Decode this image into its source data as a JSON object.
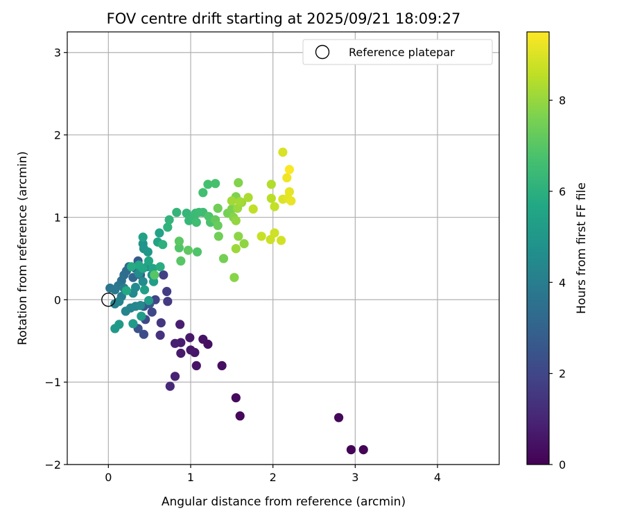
{
  "chart_data": {
    "type": "scatter",
    "title": "FOV centre drift starting at 2025/09/21 18:09:27",
    "xlabel": "Angular distance from reference (arcmin)",
    "ylabel": "Rotation from reference (arcmin)",
    "xlim": [
      -0.5,
      4.75
    ],
    "ylim": [
      -2,
      3.25
    ],
    "xticks": [
      0,
      1,
      2,
      3,
      4
    ],
    "yticks": [
      -2,
      -1,
      0,
      1,
      2,
      3
    ],
    "grid": true,
    "legend": {
      "placement": "top-right",
      "entries": [
        "Reference platepar"
      ]
    },
    "reference_point": {
      "x": 0,
      "y": 0,
      "label": "Reference platepar"
    },
    "colorbar": {
      "label": "Hours from first FF file",
      "colormap": "viridis",
      "range": [
        0,
        9.5
      ],
      "ticks": [
        0,
        2,
        4,
        6,
        8
      ]
    },
    "points": [
      {
        "x": 2.95,
        "y": -1.82,
        "h": 0.05
      },
      {
        "x": 3.1,
        "y": -1.82,
        "h": 0.1
      },
      {
        "x": 2.8,
        "y": -1.43,
        "h": 0.15
      },
      {
        "x": 1.6,
        "y": -1.41,
        "h": 0.2
      },
      {
        "x": 1.55,
        "y": -1.19,
        "h": 0.25
      },
      {
        "x": 1.38,
        "y": -0.8,
        "h": 0.35
      },
      {
        "x": 1.21,
        "y": -0.54,
        "h": 0.4
      },
      {
        "x": 1.15,
        "y": -0.48,
        "h": 0.45
      },
      {
        "x": 1.07,
        "y": -0.8,
        "h": 0.5
      },
      {
        "x": 1.05,
        "y": -0.64,
        "h": 0.55
      },
      {
        "x": 1.0,
        "y": -0.61,
        "h": 0.6
      },
      {
        "x": 0.99,
        "y": -0.46,
        "h": 0.65
      },
      {
        "x": 0.88,
        "y": -0.65,
        "h": 0.7
      },
      {
        "x": 0.88,
        "y": -0.52,
        "h": 0.75
      },
      {
        "x": 0.87,
        "y": -0.3,
        "h": 0.8
      },
      {
        "x": 0.81,
        "y": -0.53,
        "h": 0.85
      },
      {
        "x": 0.81,
        "y": -0.93,
        "h": 0.9
      },
      {
        "x": 0.75,
        "y": -1.05,
        "h": 1.1
      },
      {
        "x": 0.63,
        "y": -0.43,
        "h": 1.4
      },
      {
        "x": 0.64,
        "y": -0.28,
        "h": 1.5
      },
      {
        "x": 0.72,
        "y": -0.02,
        "h": 1.6
      },
      {
        "x": 0.71,
        "y": 0.1,
        "h": 1.7
      },
      {
        "x": 0.67,
        "y": 0.3,
        "h": 1.8
      },
      {
        "x": 0.57,
        "y": 0.0,
        "h": 1.9
      },
      {
        "x": 0.53,
        "y": -0.15,
        "h": 2.0
      },
      {
        "x": 0.45,
        "y": -0.24,
        "h": 2.1
      },
      {
        "x": 0.43,
        "y": -0.42,
        "h": 2.2
      },
      {
        "x": 0.36,
        "y": -0.35,
        "h": 2.4
      },
      {
        "x": 0.43,
        "y": -0.08,
        "h": 2.5
      },
      {
        "x": 0.5,
        "y": -0.05,
        "h": 2.6
      },
      {
        "x": 0.36,
        "y": 0.47,
        "h": 2.7
      },
      {
        "x": 0.39,
        "y": 0.3,
        "h": 2.8
      },
      {
        "x": 0.33,
        "y": 0.38,
        "h": 3.0
      },
      {
        "x": 0.3,
        "y": 0.27,
        "h": 3.1
      },
      {
        "x": 0.25,
        "y": 0.4,
        "h": 3.2
      },
      {
        "x": 0.22,
        "y": 0.35,
        "h": 3.3
      },
      {
        "x": 0.19,
        "y": 0.3,
        "h": 3.4
      },
      {
        "x": 0.16,
        "y": 0.23,
        "h": 3.5
      },
      {
        "x": 0.12,
        "y": 0.17,
        "h": 3.6
      },
      {
        "x": 0.02,
        "y": 0.14,
        "h": 3.7
      },
      {
        "x": 0.08,
        "y": 0.12,
        "h": 3.8
      },
      {
        "x": 0.19,
        "y": 0.14,
        "h": 3.9
      },
      {
        "x": 0.16,
        "y": 0.04,
        "h": 4.0
      },
      {
        "x": 0.08,
        "y": -0.05,
        "h": 4.1
      },
      {
        "x": 0.13,
        "y": -0.02,
        "h": 4.2
      },
      {
        "x": 0.21,
        "y": -0.14,
        "h": 4.25
      },
      {
        "x": 0.27,
        "y": -0.1,
        "h": 4.3
      },
      {
        "x": 0.33,
        "y": -0.08,
        "h": 4.35
      },
      {
        "x": 0.39,
        "y": -0.07,
        "h": 4.4
      },
      {
        "x": 0.3,
        "y": 0.08,
        "h": 4.45
      },
      {
        "x": 0.33,
        "y": 0.15,
        "h": 4.5
      },
      {
        "x": 0.42,
        "y": 0.22,
        "h": 4.55
      },
      {
        "x": 0.37,
        "y": 0.32,
        "h": 4.6
      },
      {
        "x": 0.47,
        "y": 0.4,
        "h": 4.65
      },
      {
        "x": 0.53,
        "y": 0.3,
        "h": 4.7
      },
      {
        "x": 0.42,
        "y": 0.68,
        "h": 4.8
      },
      {
        "x": 0.43,
        "y": 0.62,
        "h": 4.9
      },
      {
        "x": 0.48,
        "y": 0.58,
        "h": 5.0
      },
      {
        "x": 0.08,
        "y": -0.35,
        "h": 5.05
      },
      {
        "x": 0.13,
        "y": -0.3,
        "h": 5.1
      },
      {
        "x": 0.3,
        "y": -0.29,
        "h": 5.15
      },
      {
        "x": 0.4,
        "y": -0.2,
        "h": 5.2
      },
      {
        "x": 0.49,
        "y": -0.01,
        "h": 5.25
      },
      {
        "x": 0.55,
        "y": 0.22,
        "h": 5.3
      },
      {
        "x": 0.44,
        "y": 0.12,
        "h": 5.35
      },
      {
        "x": 0.42,
        "y": 0.76,
        "h": 5.4
      },
      {
        "x": 0.62,
        "y": 0.81,
        "h": 5.45
      },
      {
        "x": 0.6,
        "y": 0.7,
        "h": 5.5
      },
      {
        "x": 0.54,
        "y": 0.38,
        "h": 5.55
      },
      {
        "x": 0.42,
        "y": 0.38,
        "h": 5.6
      },
      {
        "x": 0.49,
        "y": 0.47,
        "h": 5.65
      },
      {
        "x": 0.37,
        "y": 0.42,
        "h": 5.7
      },
      {
        "x": 0.22,
        "y": 0.11,
        "h": 5.75
      },
      {
        "x": 0.28,
        "y": 0.4,
        "h": 5.8
      },
      {
        "x": 0.63,
        "y": 0.4,
        "h": 5.9
      },
      {
        "x": 0.66,
        "y": 0.67,
        "h": 6.0
      },
      {
        "x": 0.72,
        "y": 0.88,
        "h": 6.1
      },
      {
        "x": 0.74,
        "y": 0.97,
        "h": 6.15
      },
      {
        "x": 0.83,
        "y": 1.06,
        "h": 6.2
      },
      {
        "x": 0.95,
        "y": 1.05,
        "h": 6.25
      },
      {
        "x": 0.98,
        "y": 0.96,
        "h": 6.3
      },
      {
        "x": 1.04,
        "y": 0.99,
        "h": 6.35
      },
      {
        "x": 1.06,
        "y": 1.05,
        "h": 6.4
      },
      {
        "x": 1.1,
        "y": 1.06,
        "h": 6.45
      },
      {
        "x": 1.15,
        "y": 1.06,
        "h": 6.5
      },
      {
        "x": 1.07,
        "y": 0.94,
        "h": 6.55
      },
      {
        "x": 1.15,
        "y": 1.3,
        "h": 6.6
      },
      {
        "x": 1.21,
        "y": 1.4,
        "h": 6.65
      },
      {
        "x": 1.3,
        "y": 1.41,
        "h": 6.7
      },
      {
        "x": 1.24,
        "y": 0.94,
        "h": 6.75
      },
      {
        "x": 1.22,
        "y": 1.01,
        "h": 6.8
      },
      {
        "x": 1.08,
        "y": 0.58,
        "h": 6.85
      },
      {
        "x": 0.86,
        "y": 0.63,
        "h": 6.9
      },
      {
        "x": 0.56,
        "y": 0.3,
        "h": 6.95
      },
      {
        "x": 0.88,
        "y": 0.47,
        "h": 7.0
      },
      {
        "x": 0.86,
        "y": 0.71,
        "h": 7.05
      },
      {
        "x": 0.97,
        "y": 0.6,
        "h": 7.1
      },
      {
        "x": 1.3,
        "y": 0.97,
        "h": 7.2
      },
      {
        "x": 1.33,
        "y": 0.9,
        "h": 7.3
      },
      {
        "x": 1.33,
        "y": 1.11,
        "h": 7.4
      },
      {
        "x": 1.34,
        "y": 0.77,
        "h": 7.45
      },
      {
        "x": 1.4,
        "y": 0.5,
        "h": 7.5
      },
      {
        "x": 1.45,
        "y": 1.05,
        "h": 7.55
      },
      {
        "x": 1.5,
        "y": 1.1,
        "h": 7.6
      },
      {
        "x": 1.55,
        "y": 1.25,
        "h": 7.65
      },
      {
        "x": 1.58,
        "y": 1.42,
        "h": 7.7
      },
      {
        "x": 1.52,
        "y": 1.0,
        "h": 7.75
      },
      {
        "x": 1.53,
        "y": 0.27,
        "h": 7.8
      },
      {
        "x": 1.58,
        "y": 0.77,
        "h": 7.85
      },
      {
        "x": 1.65,
        "y": 0.68,
        "h": 7.9
      },
      {
        "x": 1.55,
        "y": 0.96,
        "h": 7.95
      },
      {
        "x": 1.62,
        "y": 1.18,
        "h": 8.0
      },
      {
        "x": 1.57,
        "y": 1.11,
        "h": 8.05
      },
      {
        "x": 1.55,
        "y": 0.62,
        "h": 8.1
      },
      {
        "x": 1.5,
        "y": 1.2,
        "h": 8.15
      },
      {
        "x": 1.6,
        "y": 1.19,
        "h": 8.2
      },
      {
        "x": 1.7,
        "y": 1.24,
        "h": 8.3
      },
      {
        "x": 1.98,
        "y": 1.4,
        "h": 8.4
      },
      {
        "x": 1.98,
        "y": 1.23,
        "h": 8.5
      },
      {
        "x": 1.76,
        "y": 1.1,
        "h": 8.6
      },
      {
        "x": 2.02,
        "y": 1.13,
        "h": 8.65
      },
      {
        "x": 1.86,
        "y": 0.77,
        "h": 8.7
      },
      {
        "x": 1.97,
        "y": 0.73,
        "h": 8.75
      },
      {
        "x": 2.02,
        "y": 0.81,
        "h": 8.8
      },
      {
        "x": 2.1,
        "y": 0.72,
        "h": 8.85
      },
      {
        "x": 2.12,
        "y": 1.79,
        "h": 8.95
      },
      {
        "x": 2.12,
        "y": 1.22,
        "h": 9.0
      },
      {
        "x": 2.18,
        "y": 1.23,
        "h": 9.1
      },
      {
        "x": 2.2,
        "y": 1.31,
        "h": 9.15
      },
      {
        "x": 2.22,
        "y": 1.2,
        "h": 9.2
      },
      {
        "x": 2.17,
        "y": 1.48,
        "h": 9.3
      },
      {
        "x": 2.2,
        "y": 1.58,
        "h": 9.45
      }
    ]
  }
}
